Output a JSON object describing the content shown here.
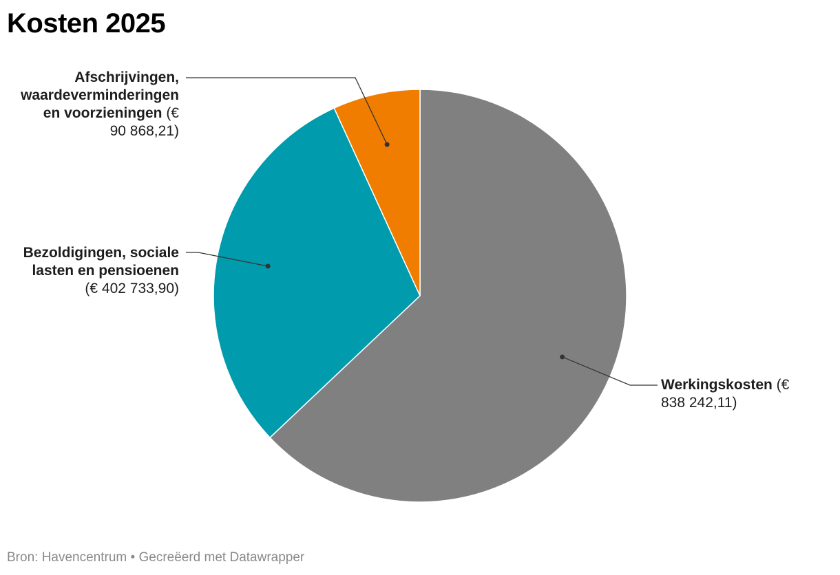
{
  "chart_data": {
    "type": "pie",
    "title": "Kosten 2025",
    "slices": [
      {
        "name": "Werkingskosten",
        "value": 838242.11,
        "value_label": "€ 838 242,11",
        "color": "#808080"
      },
      {
        "name": "Bezoldigingen, sociale lasten en pensioenen",
        "value": 402733.9,
        "value_label": "€ 402 733,90",
        "color": "#009bac"
      },
      {
        "name": "Afschrijvingen, waardeverminderingen en voorzieningen",
        "value": 90868.21,
        "value_label": "€ 90 868,21",
        "color": "#f07d00"
      }
    ]
  },
  "labels": {
    "werking_name": "Werkingskosten",
    "werking_value": "(€ 838 242,11)",
    "bezoldiging_name_1": "Bezoldigingen, sociale",
    "bezoldiging_name_2": "lasten en pensioenen",
    "bezoldiging_value": "(€ 402 733,90)",
    "afschrijving_name_1": "Afschrijvingen,",
    "afschrijving_name_2": "waardeverminderingen",
    "afschrijving_name_3": "en voorzieningen",
    "afschrijving_value_1": "(€",
    "afschrijving_value_2": "90 868,21)"
  },
  "footer": {
    "source": "Bron: Havencentrum",
    "separator": " • ",
    "credit": "Gecreëerd met Datawrapper"
  }
}
